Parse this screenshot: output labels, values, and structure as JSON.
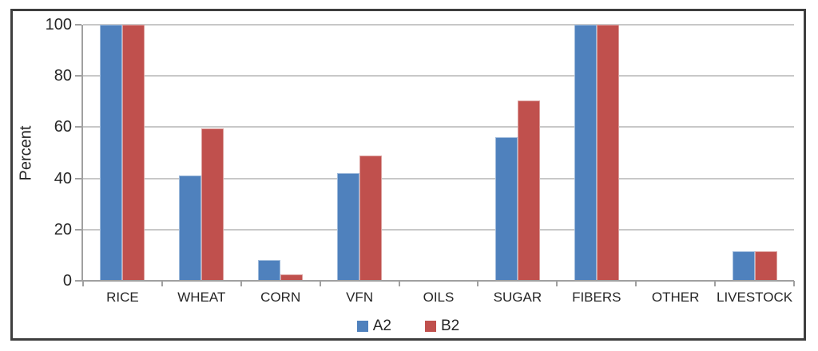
{
  "chart_data": {
    "type": "bar",
    "title": "",
    "xlabel": "",
    "ylabel": "Percent",
    "categories": [
      "RICE",
      "WHEAT",
      "CORN",
      "VFN",
      "OILS",
      "SUGAR",
      "FIBERS",
      "OTHER",
      "LIVESTOCK"
    ],
    "series": [
      {
        "name": "A2",
        "color": "#4F81BD",
        "values": [
          100,
          41,
          8,
          42,
          0,
          56,
          100,
          0,
          11.5
        ]
      },
      {
        "name": "B2",
        "color": "#C0504D",
        "values": [
          100,
          59.5,
          2.5,
          49,
          0,
          70.5,
          100,
          0,
          11.5
        ]
      }
    ],
    "ylim": [
      0,
      100
    ],
    "ytick_step": 20,
    "ytick_labels": [
      "0",
      "20",
      "40",
      "60",
      "80",
      "100"
    ],
    "grid": "horizontal",
    "legend_position": "bottom"
  },
  "colors": {
    "series_a2": "#4F81BD",
    "series_b2": "#C0504D",
    "gridline": "#C8C8C8",
    "axis": "#A0A0A0",
    "frame_border": "#3E3E3E",
    "text": "#262626",
    "background": "#FFFFFF"
  }
}
